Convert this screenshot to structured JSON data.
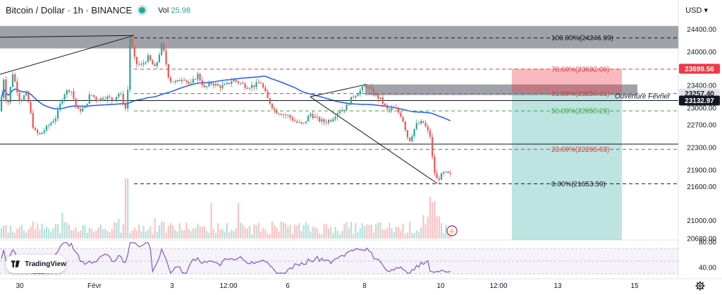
{
  "header": {
    "symbol": "Bitcoin / Dollar · 1h · BINANCE",
    "vol_label": "Vol",
    "vol_value": "25.98"
  },
  "currency_label": "USD",
  "logo_text": "TradingView",
  "colors": {
    "up": "#26a69a",
    "down": "#ef5350",
    "ma": "#2962ff",
    "rsi": "#7e57c2",
    "fib_red": "#e53935",
    "fib_green": "#43a047",
    "dark_band": "#787b86"
  },
  "chart_data": {
    "type": "candlestick",
    "symbol": "BTCUSD",
    "timeframe": "1h",
    "ylim": [
      20680,
      24620
    ],
    "y_ticks": [
      24400,
      24000,
      23400,
      23000,
      22700,
      22300,
      21900,
      21600,
      21000,
      20680
    ],
    "x_labels": [
      "30",
      "Févr",
      "3",
      "12:00",
      "6",
      "8",
      "10",
      "12:00",
      "13",
      "15"
    ],
    "price_path": [
      [
        0,
        22940
      ],
      [
        5,
        23550
      ],
      [
        10,
        22980
      ],
      [
        18,
        23620
      ],
      [
        28,
        23140
      ],
      [
        38,
        23260
      ],
      [
        48,
        22600
      ],
      [
        56,
        22520
      ],
      [
        66,
        22650
      ],
      [
        80,
        22850
      ],
      [
        90,
        23250
      ],
      [
        100,
        23350
      ],
      [
        110,
        22950
      ],
      [
        120,
        23000
      ],
      [
        128,
        23250
      ],
      [
        138,
        23150
      ],
      [
        150,
        23200
      ],
      [
        160,
        23150
      ],
      [
        170,
        23280
      ],
      [
        180,
        22920
      ],
      [
        184,
        24280
      ],
      [
        192,
        23800
      ],
      [
        200,
        23750
      ],
      [
        210,
        23900
      ],
      [
        220,
        23700
      ],
      [
        230,
        24150
      ],
      [
        240,
        23500
      ],
      [
        250,
        23450
      ],
      [
        260,
        23550
      ],
      [
        270,
        23400
      ],
      [
        280,
        23600
      ],
      [
        290,
        23350
      ],
      [
        300,
        23450
      ],
      [
        310,
        23380
      ],
      [
        320,
        23400
      ],
      [
        330,
        23500
      ],
      [
        340,
        23450
      ],
      [
        350,
        23380
      ],
      [
        360,
        23400
      ],
      [
        370,
        23450
      ],
      [
        380,
        23150
      ],
      [
        390,
        22950
      ],
      [
        400,
        22900
      ],
      [
        410,
        22850
      ],
      [
        420,
        22750
      ],
      [
        430,
        22700
      ],
      [
        440,
        22900
      ],
      [
        450,
        22800
      ],
      [
        460,
        22750
      ],
      [
        470,
        22800
      ],
      [
        480,
        22950
      ],
      [
        490,
        23000
      ],
      [
        500,
        23200
      ],
      [
        510,
        23300
      ],
      [
        520,
        23410
      ],
      [
        530,
        23250
      ],
      [
        540,
        23150
      ],
      [
        550,
        22950
      ],
      [
        560,
        23000
      ],
      [
        570,
        22850
      ],
      [
        580,
        22400
      ],
      [
        590,
        22700
      ],
      [
        600,
        22750
      ],
      [
        610,
        22500
      ],
      [
        615,
        21900
      ],
      [
        620,
        21720
      ],
      [
        630,
        21850
      ],
      [
        640,
        21800
      ]
    ],
    "rsi_ylim": [
      30,
      80
    ],
    "rsi_ticks": [
      80,
      40
    ],
    "fib_levels": [
      {
        "label": "100.00%(24246.99)",
        "value": 24246.99,
        "color": "dark"
      },
      {
        "label": "78.60%(23692.00)",
        "value": 23692.0,
        "color": "red"
      },
      {
        "label": "61.80%(23256.31)",
        "value": 23256.31,
        "color": "red"
      },
      {
        "label": "50.00%(22950.29)",
        "value": 22950.29,
        "color": "green"
      },
      {
        "label": "23.60%(22265.63)",
        "value": 22265.63,
        "color": "red"
      },
      {
        "label": "0.00%(21653.59)",
        "value": 21653.59,
        "color": "dark"
      }
    ],
    "price_tags": [
      {
        "label": "23699.56",
        "value": 23699.56,
        "bg": "#f23645",
        "fg": "#ffffff"
      },
      {
        "label": "23257.40",
        "value": 23257.4,
        "bg": "#e0e3eb",
        "fg": "#131722"
      },
      {
        "label": "23132.97",
        "value": 23132.97,
        "bg": "#131722",
        "fg": "#ffffff"
      }
    ],
    "annotation": "Ouverture Février",
    "lightning_marker": "⚡"
  }
}
